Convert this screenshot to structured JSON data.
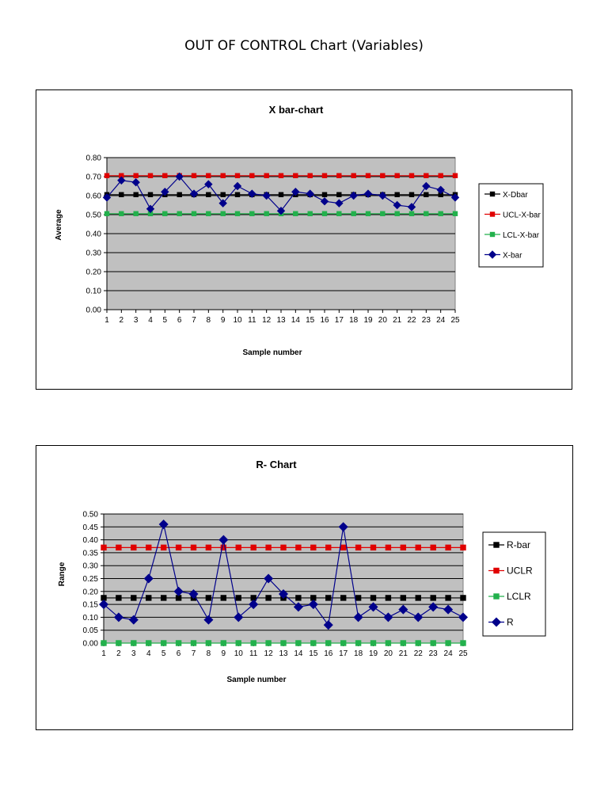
{
  "page": {
    "title": "OUT OF CONTROL Chart (Variables)"
  },
  "chart_data": [
    {
      "type": "line",
      "title": "X bar-chart",
      "xlabel": "Sample number",
      "ylabel": "Average",
      "categories": [
        "1",
        "2",
        "3",
        "4",
        "5",
        "6",
        "7",
        "8",
        "9",
        "10",
        "11",
        "12",
        "13",
        "14",
        "15",
        "16",
        "17",
        "18",
        "19",
        "20",
        "21",
        "22",
        "23",
        "24",
        "25"
      ],
      "ylim": [
        0,
        0.8
      ],
      "yticks": [
        "0.00",
        "0.10",
        "0.20",
        "0.30",
        "0.40",
        "0.50",
        "0.60",
        "0.70",
        "0.80"
      ],
      "grid": true,
      "legend": "right",
      "plot_background": "#c0c0c0",
      "series": [
        {
          "name": "X-Dbar",
          "color": "#000000",
          "marker": "square",
          "values": [
            0.605,
            0.605,
            0.605,
            0.605,
            0.605,
            0.605,
            0.605,
            0.605,
            0.605,
            0.605,
            0.605,
            0.605,
            0.605,
            0.605,
            0.605,
            0.605,
            0.605,
            0.605,
            0.605,
            0.605,
            0.605,
            0.605,
            0.605,
            0.605,
            0.605
          ]
        },
        {
          "name": "UCL-X-bar",
          "color": "#e00000",
          "marker": "square",
          "values": [
            0.705,
            0.705,
            0.705,
            0.705,
            0.705,
            0.705,
            0.705,
            0.705,
            0.705,
            0.705,
            0.705,
            0.705,
            0.705,
            0.705,
            0.705,
            0.705,
            0.705,
            0.705,
            0.705,
            0.705,
            0.705,
            0.705,
            0.705,
            0.705,
            0.705
          ]
        },
        {
          "name": "LCL-X-bar",
          "color": "#22b14c",
          "marker": "square",
          "values": [
            0.505,
            0.505,
            0.505,
            0.505,
            0.505,
            0.505,
            0.505,
            0.505,
            0.505,
            0.505,
            0.505,
            0.505,
            0.505,
            0.505,
            0.505,
            0.505,
            0.505,
            0.505,
            0.505,
            0.505,
            0.505,
            0.505,
            0.505,
            0.505,
            0.505
          ]
        },
        {
          "name": "X-bar",
          "color": "#00008b",
          "marker": "diamond",
          "values": [
            0.59,
            0.68,
            0.67,
            0.53,
            0.62,
            0.7,
            0.61,
            0.66,
            0.56,
            0.65,
            0.61,
            0.6,
            0.52,
            0.62,
            0.61,
            0.57,
            0.56,
            0.6,
            0.61,
            0.6,
            0.55,
            0.54,
            0.65,
            0.63,
            0.59
          ]
        }
      ]
    },
    {
      "type": "line",
      "title": "R- Chart",
      "xlabel": "Sample number",
      "ylabel": "Range",
      "categories": [
        "1",
        "2",
        "3",
        "4",
        "5",
        "6",
        "7",
        "8",
        "9",
        "10",
        "11",
        "12",
        "13",
        "14",
        "15",
        "16",
        "17",
        "18",
        "19",
        "20",
        "21",
        "22",
        "23",
        "24",
        "25"
      ],
      "ylim": [
        0,
        0.5
      ],
      "yticks": [
        "0.00",
        "0.05",
        "0.10",
        "0.15",
        "0.20",
        "0.25",
        "0.30",
        "0.35",
        "0.40",
        "0.45",
        "0.50"
      ],
      "grid": true,
      "legend": "right",
      "plot_background": "#c0c0c0",
      "series": [
        {
          "name": "R-bar",
          "color": "#000000",
          "marker": "square",
          "values": [
            0.175,
            0.175,
            0.175,
            0.175,
            0.175,
            0.175,
            0.175,
            0.175,
            0.175,
            0.175,
            0.175,
            0.175,
            0.175,
            0.175,
            0.175,
            0.175,
            0.175,
            0.175,
            0.175,
            0.175,
            0.175,
            0.175,
            0.175,
            0.175,
            0.175
          ]
        },
        {
          "name": "UCLR",
          "color": "#e00000",
          "marker": "square",
          "values": [
            0.37,
            0.37,
            0.37,
            0.37,
            0.37,
            0.37,
            0.37,
            0.37,
            0.37,
            0.37,
            0.37,
            0.37,
            0.37,
            0.37,
            0.37,
            0.37,
            0.37,
            0.37,
            0.37,
            0.37,
            0.37,
            0.37,
            0.37,
            0.37,
            0.37
          ]
        },
        {
          "name": "LCLR",
          "color": "#22b14c",
          "marker": "square",
          "values": [
            0,
            0,
            0,
            0,
            0,
            0,
            0,
            0,
            0,
            0,
            0,
            0,
            0,
            0,
            0,
            0,
            0,
            0,
            0,
            0,
            0,
            0,
            0,
            0,
            0
          ]
        },
        {
          "name": "R",
          "color": "#00008b",
          "marker": "diamond",
          "values": [
            0.15,
            0.1,
            0.09,
            0.25,
            0.46,
            0.2,
            0.19,
            0.09,
            0.4,
            0.1,
            0.15,
            0.25,
            0.19,
            0.14,
            0.15,
            0.07,
            0.45,
            0.1,
            0.14,
            0.1,
            0.13,
            0.1,
            0.14,
            0.13,
            0.1
          ]
        }
      ]
    }
  ]
}
